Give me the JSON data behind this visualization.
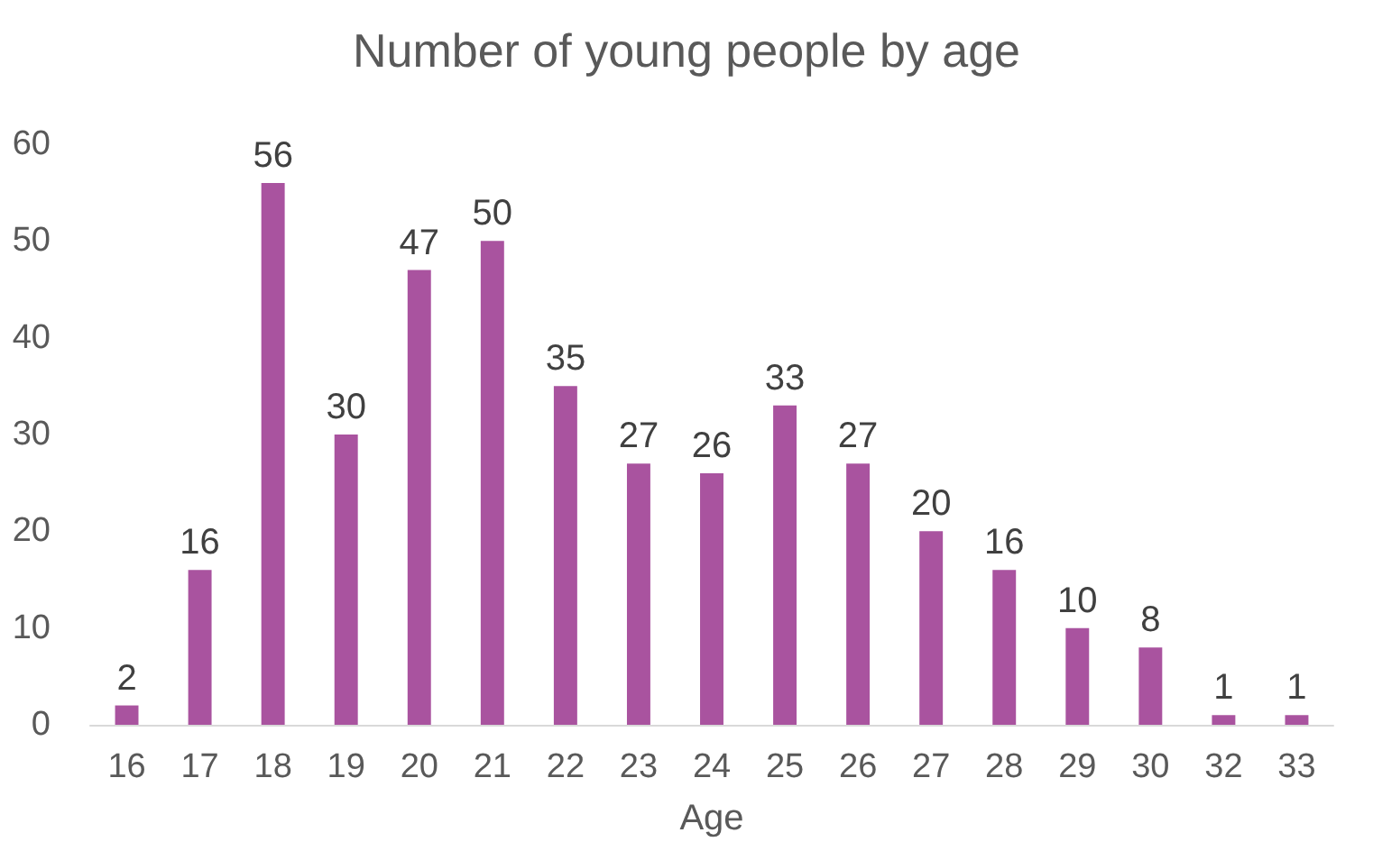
{
  "chart_data": {
    "type": "bar",
    "title": "Number of young people by age",
    "xlabel": "Age",
    "categories": [
      "16",
      "17",
      "18",
      "19",
      "20",
      "21",
      "22",
      "23",
      "24",
      "25",
      "26",
      "27",
      "28",
      "29",
      "30",
      "32",
      "33"
    ],
    "values": [
      2,
      16,
      56,
      30,
      47,
      50,
      35,
      27,
      26,
      33,
      27,
      20,
      16,
      10,
      8,
      1,
      1
    ],
    "color": "#a9539f",
    "ylim": [
      0,
      60
    ],
    "yticks": [
      0,
      10,
      20,
      30,
      40,
      50,
      60
    ],
    "grid": false,
    "data_labels": true
  }
}
